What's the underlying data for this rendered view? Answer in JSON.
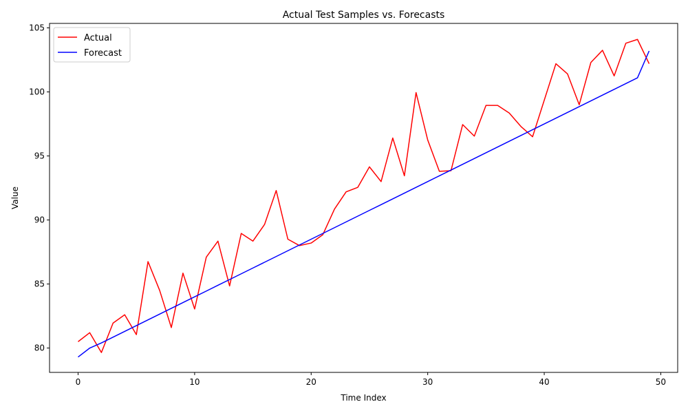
{
  "chart_data": {
    "type": "line",
    "title": "Actual Test Samples vs. Forecasts",
    "xlabel": "Time Index",
    "ylabel": "Value",
    "xlim": [
      -2.45,
      51.45
    ],
    "ylim": [
      78.1,
      105.35
    ],
    "xticks": [
      0,
      10,
      20,
      30,
      40,
      50
    ],
    "yticks": [
      80,
      85,
      90,
      95,
      100,
      105
    ],
    "grid": false,
    "legend_position": "top-left",
    "x": [
      0,
      1,
      2,
      3,
      4,
      5,
      6,
      7,
      8,
      9,
      10,
      11,
      12,
      13,
      14,
      15,
      16,
      17,
      18,
      19,
      20,
      21,
      22,
      23,
      24,
      25,
      26,
      27,
      28,
      29,
      30,
      31,
      32,
      33,
      34,
      35,
      36,
      37,
      38,
      39,
      40,
      41,
      42,
      43,
      44,
      45,
      46,
      47,
      48,
      49
    ],
    "series": [
      {
        "name": "Actual",
        "color": "#ff0000",
        "values": [
          80.5,
          81.2,
          79.65,
          81.95,
          82.6,
          81.05,
          86.75,
          84.5,
          81.6,
          85.85,
          83.05,
          87.1,
          88.35,
          84.85,
          88.95,
          88.35,
          89.65,
          92.3,
          88.5,
          88.0,
          88.2,
          88.85,
          90.85,
          92.2,
          92.55,
          94.15,
          93.0,
          96.4,
          93.45,
          99.95,
          96.25,
          93.8,
          93.85,
          97.45,
          96.55,
          98.95,
          98.95,
          98.35,
          97.3,
          96.5,
          99.35,
          102.2,
          101.4,
          99.0,
          102.3,
          103.25,
          101.25,
          103.8,
          104.1,
          102.2
        ]
      },
      {
        "name": "Forecast",
        "color": "#0000ff",
        "values": [
          79.3,
          80.0,
          80.4,
          80.85,
          81.3,
          81.75,
          82.2,
          82.65,
          83.1,
          83.55,
          84.0,
          84.45,
          84.9,
          85.35,
          85.8,
          86.25,
          86.7,
          87.15,
          87.6,
          88.05,
          88.5,
          88.95,
          89.4,
          89.85,
          90.3,
          90.75,
          91.2,
          91.65,
          92.1,
          92.55,
          93.0,
          93.45,
          93.9,
          94.35,
          94.8,
          95.25,
          95.7,
          96.15,
          96.6,
          97.05,
          97.5,
          97.95,
          98.4,
          98.85,
          99.3,
          99.75,
          100.2,
          100.65,
          101.1,
          103.2
        ]
      }
    ]
  }
}
